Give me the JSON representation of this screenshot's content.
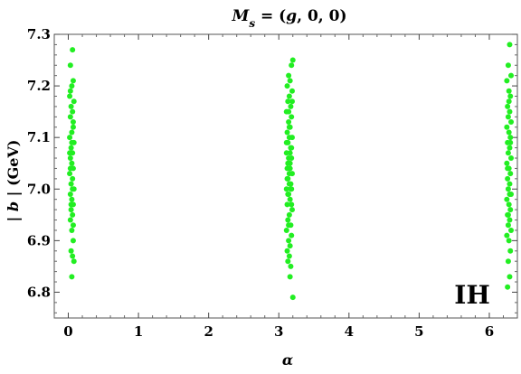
{
  "chart_data": {
    "type": "scatter",
    "title_parts": [
      {
        "text": "M",
        "style": "italic"
      },
      {
        "text": "s",
        "style": "italic-sub"
      },
      {
        "text": " = (",
        "style": "normal"
      },
      {
        "text": "g",
        "style": "italic"
      },
      {
        "text": ", 0, 0)",
        "style": "normal"
      }
    ],
    "xlabel": "α",
    "ylabel_parts": [
      {
        "text": "| ",
        "style": "normal"
      },
      {
        "text": "b",
        "style": "italic"
      },
      {
        "text": " | (GeV)",
        "style": "normal"
      }
    ],
    "annotation": "IH",
    "xlim": [
      -0.2,
      6.4
    ],
    "ylim": [
      6.75,
      7.3
    ],
    "x_ticks": [
      "0",
      "1",
      "2",
      "3",
      "4",
      "5",
      "6"
    ],
    "x_tick_values": [
      0,
      1,
      2,
      3,
      4,
      5,
      6
    ],
    "y_ticks": [
      "6.8",
      "6.9",
      "7.0",
      "7.1",
      "7.2",
      "7.3"
    ],
    "y_tick_values": [
      6.8,
      6.9,
      7.0,
      7.1,
      7.2,
      7.3
    ],
    "point_color": "#22ee22",
    "series": [
      {
        "points": [
          [
            0.06,
            7.27
          ],
          [
            0.03,
            7.24
          ],
          [
            0.07,
            7.21
          ],
          [
            0.05,
            7.2
          ],
          [
            0.02,
            7.18
          ],
          [
            0.08,
            7.17
          ],
          [
            0.04,
            7.16
          ],
          [
            0.06,
            7.15
          ],
          [
            0.03,
            7.14
          ],
          [
            0.07,
            7.12
          ],
          [
            0.05,
            7.11
          ],
          [
            0.02,
            7.1
          ],
          [
            0.08,
            7.09
          ],
          [
            0.04,
            7.08
          ],
          [
            0.06,
            7.07
          ],
          [
            0.03,
            7.06
          ],
          [
            0.05,
            7.05
          ],
          [
            0.07,
            7.04
          ],
          [
            0.02,
            7.03
          ],
          [
            0.06,
            7.02
          ],
          [
            0.04,
            7.01
          ],
          [
            0.08,
            7.0
          ],
          [
            0.03,
            6.99
          ],
          [
            0.05,
            6.98
          ],
          [
            0.07,
            6.97
          ],
          [
            0.04,
            6.96
          ],
          [
            0.06,
            6.95
          ],
          [
            0.03,
            6.94
          ],
          [
            0.05,
            6.92
          ],
          [
            0.07,
            6.9
          ],
          [
            0.04,
            6.88
          ],
          [
            0.06,
            6.87
          ],
          [
            0.08,
            6.86
          ],
          [
            0.05,
            6.83
          ],
          [
            0.03,
            7.19
          ],
          [
            0.07,
            7.13
          ],
          [
            0.05,
            7.09
          ],
          [
            0.03,
            7.04
          ],
          [
            0.06,
            7.0
          ],
          [
            0.04,
            6.97
          ],
          [
            0.07,
            6.93
          ],
          [
            0.02,
            7.07
          ]
        ]
      },
      {
        "points": [
          [
            3.2,
            7.25
          ],
          [
            3.18,
            7.24
          ],
          [
            3.14,
            7.22
          ],
          [
            3.16,
            7.21
          ],
          [
            3.12,
            7.2
          ],
          [
            3.19,
            7.19
          ],
          [
            3.15,
            7.18
          ],
          [
            3.13,
            7.17
          ],
          [
            3.17,
            7.16
          ],
          [
            3.11,
            7.15
          ],
          [
            3.18,
            7.14
          ],
          [
            3.14,
            7.13
          ],
          [
            3.16,
            7.12
          ],
          [
            3.12,
            7.11
          ],
          [
            3.19,
            7.1
          ],
          [
            3.15,
            7.1
          ],
          [
            3.13,
            7.09
          ],
          [
            3.17,
            7.08
          ],
          [
            3.11,
            7.07
          ],
          [
            3.18,
            7.06
          ],
          [
            3.14,
            7.06
          ],
          [
            3.16,
            7.05
          ],
          [
            3.12,
            7.04
          ],
          [
            3.19,
            7.03
          ],
          [
            3.15,
            7.03
          ],
          [
            3.13,
            7.02
          ],
          [
            3.17,
            7.01
          ],
          [
            3.11,
            7.0
          ],
          [
            3.18,
            7.0
          ],
          [
            3.14,
            6.99
          ],
          [
            3.16,
            6.98
          ],
          [
            3.12,
            6.97
          ],
          [
            3.19,
            6.96
          ],
          [
            3.15,
            6.95
          ],
          [
            3.13,
            6.94
          ],
          [
            3.17,
            6.93
          ],
          [
            3.11,
            6.92
          ],
          [
            3.18,
            6.91
          ],
          [
            3.14,
            6.9
          ],
          [
            3.16,
            6.89
          ],
          [
            3.12,
            6.88
          ],
          [
            3.15,
            6.87
          ],
          [
            3.13,
            6.86
          ],
          [
            3.17,
            6.85
          ],
          [
            3.16,
            6.83
          ],
          [
            3.2,
            6.79
          ],
          [
            3.14,
            7.15
          ],
          [
            3.16,
            7.07
          ],
          [
            3.12,
            7.02
          ],
          [
            3.18,
            6.97
          ],
          [
            3.15,
            7.12
          ],
          [
            3.13,
            7.05
          ],
          [
            3.17,
            7.0
          ],
          [
            3.14,
            6.93
          ],
          [
            3.19,
            7.17
          ],
          [
            3.11,
            7.09
          ],
          [
            3.16,
            7.04
          ],
          [
            3.13,
            6.99
          ],
          [
            3.18,
            7.08
          ],
          [
            3.15,
            7.01
          ]
        ]
      },
      {
        "points": [
          [
            6.29,
            7.28
          ],
          [
            6.27,
            7.24
          ],
          [
            6.31,
            7.22
          ],
          [
            6.25,
            7.21
          ],
          [
            6.28,
            7.19
          ],
          [
            6.3,
            7.18
          ],
          [
            6.26,
            7.16
          ],
          [
            6.29,
            7.15
          ],
          [
            6.27,
            7.14
          ],
          [
            6.31,
            7.13
          ],
          [
            6.25,
            7.12
          ],
          [
            6.28,
            7.11
          ],
          [
            6.3,
            7.1
          ],
          [
            6.26,
            7.09
          ],
          [
            6.29,
            7.08
          ],
          [
            6.27,
            7.07
          ],
          [
            6.31,
            7.06
          ],
          [
            6.25,
            7.05
          ],
          [
            6.28,
            7.04
          ],
          [
            6.3,
            7.03
          ],
          [
            6.26,
            7.02
          ],
          [
            6.29,
            7.01
          ],
          [
            6.27,
            7.0
          ],
          [
            6.31,
            6.99
          ],
          [
            6.25,
            6.98
          ],
          [
            6.28,
            6.97
          ],
          [
            6.3,
            6.96
          ],
          [
            6.26,
            6.95
          ],
          [
            6.29,
            6.94
          ],
          [
            6.27,
            6.93
          ],
          [
            6.31,
            6.92
          ],
          [
            6.25,
            6.91
          ],
          [
            6.28,
            6.9
          ],
          [
            6.3,
            6.88
          ],
          [
            6.27,
            6.86
          ],
          [
            6.29,
            6.83
          ],
          [
            6.26,
            6.81
          ],
          [
            6.28,
            7.17
          ],
          [
            6.3,
            7.09
          ],
          [
            6.26,
            7.04
          ],
          [
            6.29,
            6.99
          ],
          [
            6.27,
            6.95
          ]
        ]
      }
    ]
  }
}
